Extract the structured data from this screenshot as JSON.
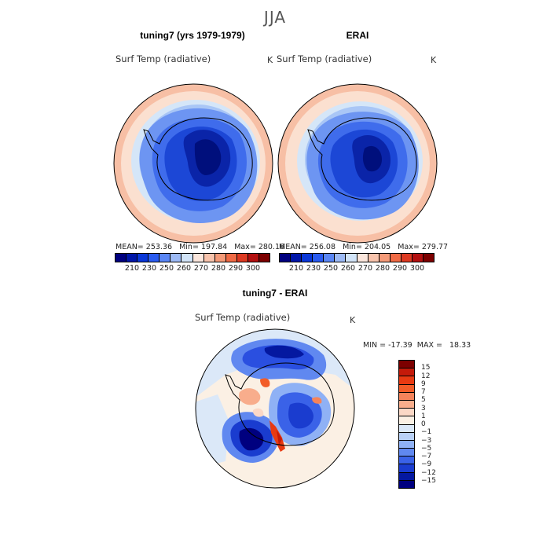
{
  "season": "JJA",
  "panel_left": {
    "title": "tuning7 (yrs 1979-1979)",
    "variable": "Surf Temp (radiative)",
    "units": "K",
    "stats": "MEAN= 253.36   Min= 197.84   Max= 280.16"
  },
  "panel_right": {
    "title": "ERAI",
    "variable": "Surf Temp (radiative)",
    "units": "K",
    "stats": "MEAN= 256.08   Min= 204.05   Max= 279.77"
  },
  "panel_diff": {
    "title": "tuning7 - ERAI",
    "variable": "Surf Temp (radiative)",
    "units": "K",
    "stats": "MIN = -17.39  MAX =   18.33"
  },
  "abs_colorbar": {
    "colors": [
      "#00007f",
      "#0016a8",
      "#0a37d8",
      "#2a5bf0",
      "#5a86f5",
      "#9dbaf5",
      "#d2e4f8",
      "#fbe6dc",
      "#f8c3ac",
      "#f59a78",
      "#f06a45",
      "#dd3a22",
      "#b31010",
      "#7c0000"
    ],
    "labels": [
      "210",
      "230",
      "250",
      "260",
      "270",
      "280",
      "290",
      "300"
    ]
  },
  "diff_colorbar": {
    "colors": [
      "#7c0000",
      "#c41a0a",
      "#e83a12",
      "#f25c28",
      "#f5835a",
      "#f8ad8c",
      "#fbd8c6",
      "#fbf0e4",
      "#dbe8f8",
      "#b9d1f7",
      "#8fb1f5",
      "#6088f0",
      "#3a62e8",
      "#1a3ccf",
      "#0418a0",
      "#00007f"
    ],
    "labels": [
      "15",
      "12",
      "9",
      "7",
      "5",
      "3",
      "1",
      "0",
      "−1",
      "−3",
      "−5",
      "−7",
      "−9",
      "−12",
      "−15"
    ]
  }
}
